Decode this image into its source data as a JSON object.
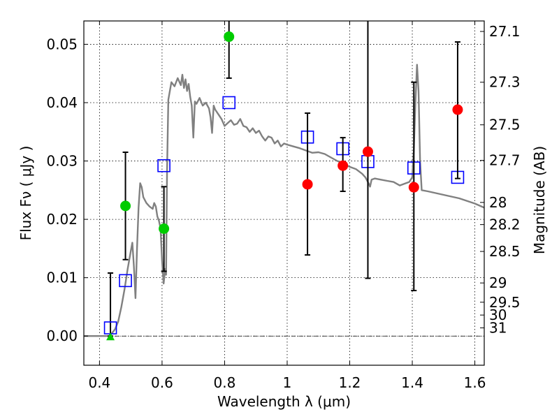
{
  "chart_data": {
    "type": "scatter",
    "xlabel": "Wavelength  λ (μm)",
    "ylabel": "Flux  Fν  ( μJy )",
    "ylabel_right": "Magnitude (AB)",
    "xlim": [
      0.35,
      1.63
    ],
    "ylim": [
      -0.005,
      0.054
    ],
    "x_ticks": [
      0.4,
      0.6,
      0.8,
      1.0,
      1.2,
      1.4,
      1.6
    ],
    "x_tick_labels": [
      "0.4",
      "0.6",
      "0.8",
      "1",
      "1.2",
      "1.4",
      "1.6"
    ],
    "y_ticks": [
      0.0,
      0.01,
      0.02,
      0.03,
      0.04,
      0.05
    ],
    "y_tick_labels": [
      "0.00",
      "0.01",
      "0.02",
      "0.03",
      "0.04",
      "0.05"
    ],
    "right_ticks": [
      {
        "label": "27.1",
        "flux": 0.0522
      },
      {
        "label": "27.3",
        "flux": 0.0435
      },
      {
        "label": "27.5",
        "flux": 0.0362
      },
      {
        "label": "27.7",
        "flux": 0.0301
      },
      {
        "label": "28",
        "flux": 0.0229
      },
      {
        "label": "28.2",
        "flux": 0.0191
      },
      {
        "label": "28.5",
        "flux": 0.0145
      },
      {
        "label": "29",
        "flux": 0.0091
      },
      {
        "label": "29.5",
        "flux": 0.0058
      },
      {
        "label": "30",
        "flux": 0.0036
      },
      {
        "label": "31",
        "flux": 0.0014
      }
    ],
    "zero_line": 0.0,
    "colors": {
      "model": "#808080",
      "observed_red": "#ff0000",
      "observed_green": "#00cc00",
      "model_box": "#0000ff",
      "errorbar": "#000000"
    },
    "series": [
      {
        "name": "model SED",
        "kind": "line",
        "points": [
          [
            0.35,
            0.0
          ],
          [
            0.43,
            0.0
          ],
          [
            0.44,
            0.0005
          ],
          [
            0.45,
            0.0012
          ],
          [
            0.46,
            0.0025
          ],
          [
            0.47,
            0.005
          ],
          [
            0.48,
            0.008
          ],
          [
            0.49,
            0.0115
          ],
          [
            0.5,
            0.0145
          ],
          [
            0.505,
            0.016
          ],
          [
            0.51,
            0.012
          ],
          [
            0.515,
            0.0065
          ],
          [
            0.52,
            0.015
          ],
          [
            0.525,
            0.022
          ],
          [
            0.53,
            0.0262
          ],
          [
            0.535,
            0.0255
          ],
          [
            0.54,
            0.0238
          ],
          [
            0.55,
            0.0228
          ],
          [
            0.56,
            0.0222
          ],
          [
            0.57,
            0.0218
          ],
          [
            0.575,
            0.0228
          ],
          [
            0.58,
            0.0222
          ],
          [
            0.585,
            0.0205
          ],
          [
            0.59,
            0.0198
          ],
          [
            0.595,
            0.0185
          ],
          [
            0.6,
            0.013
          ],
          [
            0.605,
            0.009
          ],
          [
            0.61,
            0.0115
          ],
          [
            0.613,
            0.0105
          ],
          [
            0.616,
            0.0285
          ],
          [
            0.62,
            0.0405
          ],
          [
            0.63,
            0.0435
          ],
          [
            0.64,
            0.0428
          ],
          [
            0.65,
            0.0442
          ],
          [
            0.66,
            0.043
          ],
          [
            0.665,
            0.0448
          ],
          [
            0.67,
            0.0425
          ],
          [
            0.675,
            0.044
          ],
          [
            0.68,
            0.042
          ],
          [
            0.685,
            0.0432
          ],
          [
            0.69,
            0.041
          ],
          [
            0.695,
            0.0395
          ],
          [
            0.7,
            0.034
          ],
          [
            0.705,
            0.0402
          ],
          [
            0.71,
            0.0398
          ],
          [
            0.72,
            0.0408
          ],
          [
            0.73,
            0.0395
          ],
          [
            0.74,
            0.04
          ],
          [
            0.75,
            0.039
          ],
          [
            0.755,
            0.0375
          ],
          [
            0.76,
            0.0348
          ],
          [
            0.765,
            0.0395
          ],
          [
            0.77,
            0.0388
          ],
          [
            0.78,
            0.038
          ],
          [
            0.79,
            0.0372
          ],
          [
            0.8,
            0.036
          ],
          [
            0.81,
            0.0365
          ],
          [
            0.82,
            0.037
          ],
          [
            0.83,
            0.0362
          ],
          [
            0.84,
            0.0364
          ],
          [
            0.85,
            0.0372
          ],
          [
            0.86,
            0.036
          ],
          [
            0.87,
            0.0358
          ],
          [
            0.88,
            0.035
          ],
          [
            0.89,
            0.0356
          ],
          [
            0.9,
            0.0348
          ],
          [
            0.91,
            0.0352
          ],
          [
            0.92,
            0.0342
          ],
          [
            0.93,
            0.0335
          ],
          [
            0.94,
            0.0342
          ],
          [
            0.95,
            0.034
          ],
          [
            0.96,
            0.033
          ],
          [
            0.97,
            0.0335
          ],
          [
            0.98,
            0.0325
          ],
          [
            0.99,
            0.033
          ],
          [
            1.0,
            0.0328
          ],
          [
            1.02,
            0.0325
          ],
          [
            1.04,
            0.0322
          ],
          [
            1.06,
            0.0318
          ],
          [
            1.08,
            0.0314
          ],
          [
            1.1,
            0.0315
          ],
          [
            1.12,
            0.0312
          ],
          [
            1.14,
            0.0306
          ],
          [
            1.16,
            0.03
          ],
          [
            1.18,
            0.0296
          ],
          [
            1.2,
            0.029
          ],
          [
            1.22,
            0.0286
          ],
          [
            1.24,
            0.0278
          ],
          [
            1.25,
            0.0272
          ],
          [
            1.26,
            0.0262
          ],
          [
            1.265,
            0.0256
          ],
          [
            1.27,
            0.0268
          ],
          [
            1.28,
            0.027
          ],
          [
            1.3,
            0.0268
          ],
          [
            1.32,
            0.0266
          ],
          [
            1.34,
            0.0264
          ],
          [
            1.36,
            0.0258
          ],
          [
            1.38,
            0.0262
          ],
          [
            1.39,
            0.0264
          ],
          [
            1.4,
            0.0272
          ],
          [
            1.405,
            0.032
          ],
          [
            1.41,
            0.04
          ],
          [
            1.415,
            0.0465
          ],
          [
            1.42,
            0.042
          ],
          [
            1.425,
            0.03
          ],
          [
            1.43,
            0.025
          ],
          [
            1.45,
            0.0248
          ],
          [
            1.5,
            0.0242
          ],
          [
            1.55,
            0.0236
          ],
          [
            1.6,
            0.0227
          ],
          [
            1.63,
            0.022
          ]
        ]
      },
      {
        "name": "observed (detections)",
        "kind": "points",
        "color": "#ff0000",
        "points": [
          {
            "x": 1.065,
            "y": 0.026,
            "err": [
              0.0139,
              0.0382
            ]
          },
          {
            "x": 1.178,
            "y": 0.0292,
            "err": [
              0.0248,
              0.034
            ]
          },
          {
            "x": 1.258,
            "y": 0.0316,
            "err": [
              0.0099,
              0.0545
            ]
          },
          {
            "x": 1.405,
            "y": 0.0255,
            "err": [
              0.0078,
              0.0435
            ]
          },
          {
            "x": 1.545,
            "y": 0.0388,
            "err": [
              0.027,
              0.0504
            ]
          }
        ]
      },
      {
        "name": "observed (green)",
        "kind": "points",
        "color": "#00cc00",
        "points": [
          {
            "x": 0.483,
            "y": 0.0223,
            "err": [
              0.0131,
              0.0315
            ]
          },
          {
            "x": 0.606,
            "y": 0.0184,
            "err": [
              0.0111,
              0.0256
            ]
          },
          {
            "x": 0.814,
            "y": 0.0513,
            "err": [
              0.0442,
              0.0545
            ]
          }
        ]
      },
      {
        "name": "upper limit",
        "kind": "triangle",
        "color": "#00cc00",
        "points": [
          {
            "x": 0.435,
            "y": 0.0
          }
        ]
      },
      {
        "name": "model photometry",
        "kind": "boxes",
        "color": "#0000ff",
        "points": [
          {
            "x": 0.435,
            "y": 0.0014,
            "err": [
              0.0,
              0.0108
            ]
          },
          {
            "x": 0.483,
            "y": 0.0095
          },
          {
            "x": 0.606,
            "y": 0.0292
          },
          {
            "x": 0.814,
            "y": 0.04
          },
          {
            "x": 1.065,
            "y": 0.0341
          },
          {
            "x": 1.178,
            "y": 0.0321
          },
          {
            "x": 1.258,
            "y": 0.0299
          },
          {
            "x": 1.405,
            "y": 0.0288
          },
          {
            "x": 1.545,
            "y": 0.0272
          }
        ]
      }
    ]
  }
}
